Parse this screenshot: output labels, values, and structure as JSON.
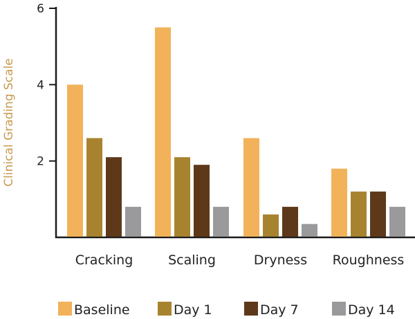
{
  "chart_data": {
    "type": "bar",
    "title": "",
    "xlabel": "",
    "ylabel": "Clinical Grading Scale",
    "ylim": [
      0,
      6
    ],
    "yticks": [
      2,
      4,
      6
    ],
    "grid": false,
    "legend_position": "bottom",
    "categories": [
      "Cracking",
      "Scaling",
      "Dryness",
      "Roughness"
    ],
    "series": [
      {
        "name": "Baseline",
        "color": "#F2B25A",
        "values": [
          4.0,
          5.5,
          2.6,
          1.8
        ]
      },
      {
        "name": "Day 1",
        "color": "#A8832F",
        "values": [
          2.6,
          2.1,
          0.6,
          1.2
        ]
      },
      {
        "name": "Day 7",
        "color": "#5E3919",
        "values": [
          2.1,
          1.9,
          0.8,
          1.2
        ]
      },
      {
        "name": "Day 14",
        "color": "#9A9A9C",
        "values": [
          0.8,
          0.8,
          0.35,
          0.8
        ]
      }
    ],
    "ylabel_color": "#C89A52"
  }
}
